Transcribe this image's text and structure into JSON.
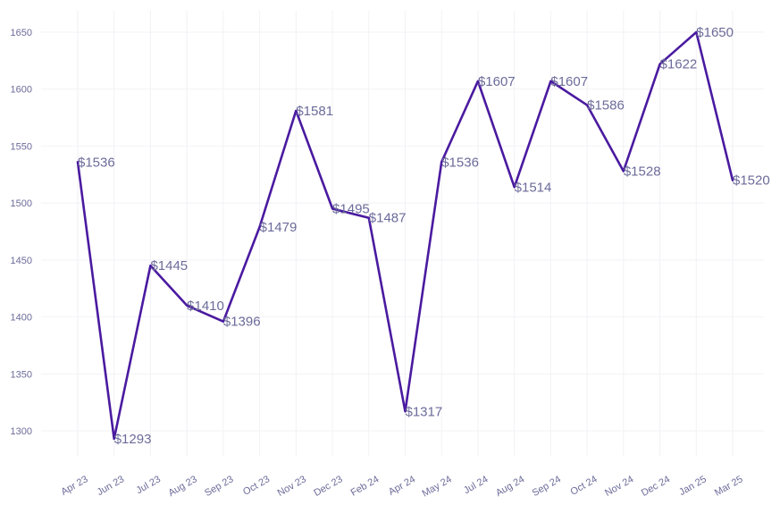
{
  "chart_data": {
    "type": "line",
    "title": "",
    "xlabel": "",
    "ylabel": "",
    "categories": [
      "Apr 23",
      "Jun 23",
      "Jul 23",
      "Aug 23",
      "Sep 23",
      "Oct 23",
      "Nov 23",
      "Dec 23",
      "Feb 24",
      "Apr 24",
      "May 24",
      "Jul 24",
      "Aug 24",
      "Sep 24",
      "Oct 24",
      "Nov 24",
      "Dec 24",
      "Jan 25",
      "Mar 25"
    ],
    "values": [
      1536,
      1293,
      1445,
      1410,
      1396,
      1479,
      1581,
      1495,
      1487,
      1317,
      1536,
      1607,
      1514,
      1607,
      1586,
      1528,
      1622,
      1650,
      1520
    ],
    "data_labels": [
      "$1536",
      "$1293",
      "$1445",
      "$1410",
      "$1396",
      "$1479",
      "$1581",
      "$1495",
      "$1487",
      "$1317",
      "$1536",
      "$1607",
      "$1514",
      "$1607",
      "$1586",
      "$1528",
      "$1622",
      "$1650",
      "$1520"
    ],
    "ylim": [
      1275,
      1660
    ],
    "yticks": [
      "1300",
      "1350",
      "1400",
      "1450",
      "1500",
      "1550",
      "1600",
      "1650"
    ],
    "grid": true,
    "legend": "none",
    "colors": {
      "line": "#4a1aa0",
      "labels": "#6b6b9a",
      "grid": "#f2f2f6"
    }
  }
}
